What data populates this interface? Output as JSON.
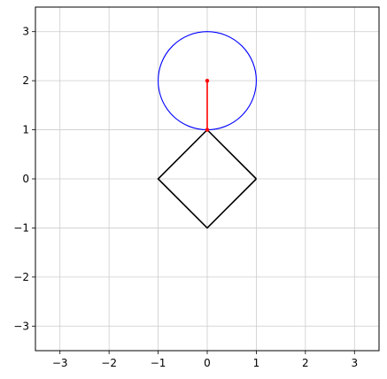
{
  "chart_data": {
    "type": "line",
    "title": "",
    "xlabel": "",
    "ylabel": "",
    "xlim": [
      -3.5,
      3.5
    ],
    "ylim": [
      -3.5,
      3.5
    ],
    "grid": true,
    "aspect": "equal",
    "x_ticks": [
      -3,
      -2,
      -1,
      0,
      1,
      2,
      3
    ],
    "x_tick_labels": [
      "−3",
      "−2",
      "−1",
      "0",
      "1",
      "2",
      "3"
    ],
    "y_ticks": [
      -3,
      -2,
      -1,
      0,
      1,
      2,
      3
    ],
    "y_tick_labels": [
      "−3",
      "−2",
      "−1",
      "0",
      "1",
      "2",
      "3"
    ],
    "series": [
      {
        "shape": "polygon",
        "color": "#000000",
        "points": [
          [
            1,
            0
          ],
          [
            0,
            1
          ],
          [
            -1,
            0
          ],
          [
            0,
            -1
          ],
          [
            1,
            0
          ]
        ]
      },
      {
        "shape": "circle",
        "color": "#0000ff",
        "center": [
          0,
          2
        ],
        "radius": 1
      },
      {
        "shape": "segment",
        "color": "#ff0000",
        "points": [
          [
            0,
            1
          ],
          [
            0,
            2
          ]
        ],
        "markers": true
      }
    ]
  }
}
